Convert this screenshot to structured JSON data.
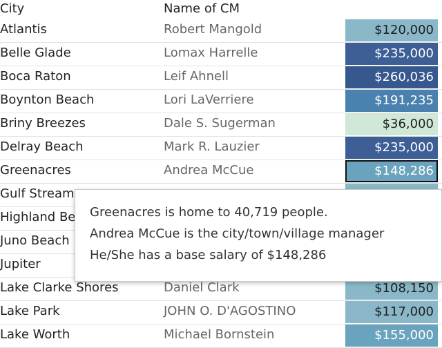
{
  "columns": {
    "city": "City",
    "cm": "Name of CM"
  },
  "rows": [
    {
      "city": "Atlantis",
      "cm": "Robert Mangold",
      "salary_label": "$120,000",
      "salary": 120000,
      "bg": "#8ab8c8",
      "fg": "#1e1e1e"
    },
    {
      "city": "Belle Glade",
      "cm": "Lomax Harrelle",
      "salary_label": "$235,000",
      "salary": 235000,
      "bg": "#3d5f96",
      "fg": "#ffffff"
    },
    {
      "city": "Boca Raton",
      "cm": "Leif Ahnell",
      "salary_label": "$260,036",
      "salary": 260036,
      "bg": "#36588e",
      "fg": "#ffffff"
    },
    {
      "city": "Boynton Beach",
      "cm": "Lori LaVerriere",
      "salary_label": "$191,235",
      "salary": 191235,
      "bg": "#4b81ae",
      "fg": "#ffffff"
    },
    {
      "city": "Briny Breezes",
      "cm": "Dale S. Sugerman",
      "salary_label": "$36,000",
      "salary": 36000,
      "bg": "#cfe8d8",
      "fg": "#1e1e1e"
    },
    {
      "city": "Delray Beach",
      "cm": "Mark R. Lauzier",
      "salary_label": "$235,000",
      "salary": 235000,
      "bg": "#3d5f96",
      "fg": "#ffffff"
    },
    {
      "city": "Greenacres",
      "cm": "Andrea McCue",
      "salary_label": "$148,286",
      "salary": 148286,
      "bg": "#6aa3bd",
      "fg": "#ffffff",
      "selected": true
    },
    {
      "city": "Gulf Stream",
      "cm": "",
      "salary_label": "",
      "salary": null,
      "bg": "#8ab8c8",
      "fg": "#1e1e1e"
    },
    {
      "city": "Highland Beach",
      "cm": "",
      "salary_label": "",
      "salary": null,
      "bg": "#ffffff",
      "fg": "#1e1e1e"
    },
    {
      "city": "Juno Beach",
      "cm": "",
      "salary_label": "",
      "salary": null,
      "bg": "#ffffff",
      "fg": "#1e1e1e"
    },
    {
      "city": "Jupiter",
      "cm": "",
      "salary_label": "",
      "salary": null,
      "bg": "#ffffff",
      "fg": "#1e1e1e"
    },
    {
      "city": "Lake Clarke Shores",
      "cm": "Daniel Clark",
      "salary_label": "$108,150",
      "salary": 108150,
      "bg": "#8ab8c8",
      "fg": "#1e1e1e"
    },
    {
      "city": "Lake Park",
      "cm": "JOHN O. D'AGOSTINO",
      "salary_label": "$117,000",
      "salary": 117000,
      "bg": "#8ab8c8",
      "fg": "#1e1e1e"
    },
    {
      "city": "Lake Worth",
      "cm": "Michael Bornstein",
      "salary_label": "$155,000",
      "salary": 155000,
      "bg": "#6aa3bd",
      "fg": "#ffffff"
    }
  ],
  "tooltip": {
    "line1": "Greenacres is home to 40,719 people.",
    "line2": "Andrea McCue is the city/town/village manager",
    "line3": "He/She has a base salary of $148,286"
  }
}
